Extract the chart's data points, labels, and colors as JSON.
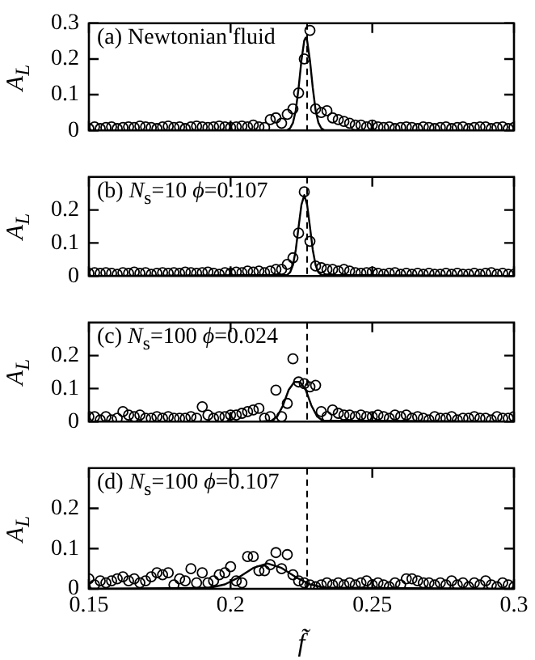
{
  "chart_data": [
    {
      "type": "scatter",
      "annotations": [
        "(a) Newtonian fluid"
      ],
      "ylabel": "A$_{L}$",
      "xlim": [
        0.15,
        0.3
      ],
      "ylim": [
        0,
        0.3
      ],
      "yticks": [
        0,
        0.1,
        0.2,
        0.3
      ],
      "xticks": [
        0.15,
        0.2,
        0.25,
        0.3
      ],
      "tick_labels": "y",
      "grid": false,
      "legend": false,
      "ref_lines": [
        {
          "axis": "x",
          "value": 0.227,
          "line_style": "dashed",
          "color": "#000000"
        }
      ],
      "x": [
        0.15,
        0.152,
        0.154,
        0.156,
        0.158,
        0.16,
        0.162,
        0.164,
        0.166,
        0.168,
        0.17,
        0.172,
        0.174,
        0.176,
        0.178,
        0.18,
        0.182,
        0.184,
        0.186,
        0.188,
        0.19,
        0.192,
        0.194,
        0.196,
        0.198,
        0.2,
        0.202,
        0.204,
        0.206,
        0.208,
        0.21,
        0.212,
        0.214,
        0.216,
        0.218,
        0.22,
        0.222,
        0.224,
        0.226,
        0.228,
        0.23,
        0.232,
        0.234,
        0.236,
        0.238,
        0.24,
        0.242,
        0.244,
        0.246,
        0.248,
        0.25,
        0.252,
        0.254,
        0.256,
        0.258,
        0.26,
        0.262,
        0.264,
        0.266,
        0.268,
        0.27,
        0.272,
        0.274,
        0.276,
        0.278,
        0.28,
        0.282,
        0.284,
        0.286,
        0.288,
        0.29,
        0.292,
        0.294,
        0.296,
        0.298,
        0.3
      ],
      "series": [
        {
          "type": "scatter",
          "marker": "circle",
          "color": "#000000",
          "values": [
            0.005,
            0.01,
            0.005,
            0.008,
            0.01,
            0.005,
            0.008,
            0.01,
            0.008,
            0.012,
            0.01,
            0.008,
            0.005,
            0.01,
            0.012,
            0.008,
            0.01,
            0.005,
            0.01,
            0.012,
            0.01,
            0.008,
            0.01,
            0.012,
            0.01,
            0.008,
            0.01,
            0.012,
            0.01,
            0.015,
            0.01,
            0.008,
            0.03,
            0.035,
            0.02,
            0.045,
            0.06,
            0.105,
            0.2,
            0.28,
            0.06,
            0.05,
            0.055,
            0.035,
            0.03,
            0.025,
            0.02,
            0.015,
            0.015,
            0.01,
            0.015,
            0.01,
            0.008,
            0.01,
            0.005,
            0.008,
            0.01,
            0.008,
            0.005,
            0.01,
            0.008,
            0.005,
            0.008,
            0.01,
            0.005,
            0.008,
            0.01,
            0.005,
            0.008,
            0.01,
            0.01,
            0.005,
            0.008,
            0.01,
            0.005,
            0.008
          ]
        },
        {
          "type": "line",
          "marker": "none",
          "line_style": "solid",
          "color": "#000000",
          "x": [
            0.15,
            0.22,
            0.221,
            0.222,
            0.223,
            0.224,
            0.225,
            0.226,
            0.2265,
            0.227,
            0.228,
            0.229,
            0.23,
            0.231,
            0.232,
            0.233,
            0.3
          ],
          "values": [
            0,
            0.001,
            0.006,
            0.021,
            0.056,
            0.119,
            0.196,
            0.252,
            0.26,
            0.252,
            0.196,
            0.119,
            0.056,
            0.021,
            0.006,
            0.001,
            0
          ]
        }
      ]
    },
    {
      "type": "scatter",
      "annotations": [
        "(b) N$_{s}$=10 ϕ=0.107"
      ],
      "ylabel": "A$_{L}$",
      "xlim": [
        0.15,
        0.3
      ],
      "ylim": [
        0,
        0.3
      ],
      "yticks": [
        0,
        0.1,
        0.2
      ],
      "xticks": [
        0.15,
        0.2,
        0.25,
        0.3
      ],
      "tick_labels": "y",
      "grid": false,
      "legend": false,
      "ref_lines": [
        {
          "axis": "x",
          "value": 0.227,
          "line_style": "dashed",
          "color": "#000000"
        }
      ],
      "x": [
        0.15,
        0.152,
        0.154,
        0.156,
        0.158,
        0.16,
        0.162,
        0.164,
        0.166,
        0.168,
        0.17,
        0.172,
        0.174,
        0.176,
        0.178,
        0.18,
        0.182,
        0.184,
        0.186,
        0.188,
        0.19,
        0.192,
        0.194,
        0.196,
        0.198,
        0.2,
        0.202,
        0.204,
        0.206,
        0.208,
        0.21,
        0.212,
        0.214,
        0.216,
        0.218,
        0.22,
        0.222,
        0.224,
        0.226,
        0.228,
        0.23,
        0.232,
        0.234,
        0.236,
        0.238,
        0.24,
        0.242,
        0.244,
        0.246,
        0.248,
        0.25,
        0.252,
        0.254,
        0.256,
        0.258,
        0.26,
        0.262,
        0.264,
        0.266,
        0.268,
        0.27,
        0.272,
        0.274,
        0.276,
        0.278,
        0.28,
        0.282,
        0.284,
        0.286,
        0.288,
        0.29,
        0.292,
        0.294,
        0.296,
        0.298,
        0.3
      ],
      "series": [
        {
          "type": "scatter",
          "marker": "circle",
          "color": "#000000",
          "values": [
            0.008,
            0.01,
            0.008,
            0.01,
            0.008,
            0.005,
            0.01,
            0.008,
            0.012,
            0.008,
            0.01,
            0.005,
            0.008,
            0.01,
            0.008,
            0.01,
            0.008,
            0.012,
            0.01,
            0.008,
            0.01,
            0.012,
            0.008,
            0.005,
            0.01,
            0.008,
            0.012,
            0.01,
            0.015,
            0.012,
            0.015,
            0.01,
            0.015,
            0.02,
            0.02,
            0.035,
            0.055,
            0.13,
            0.255,
            0.105,
            0.03,
            0.025,
            0.02,
            0.02,
            0.015,
            0.02,
            0.015,
            0.01,
            0.008,
            0.01,
            0.012,
            0.008,
            0.005,
            0.008,
            0.01,
            0.005,
            0.008,
            0.005,
            0.008,
            0.005,
            0.008,
            0.005,
            0.005,
            0.008,
            0.005,
            0.008,
            0.005,
            0.005,
            0.008,
            0.005,
            0.008,
            0.01,
            0.005,
            0.008,
            0.005,
            0.005
          ]
        },
        {
          "type": "line",
          "marker": "none",
          "line_style": "solid",
          "color": "#000000",
          "x": [
            0.15,
            0.22,
            0.221,
            0.222,
            0.223,
            0.224,
            0.225,
            0.226,
            0.227,
            0.228,
            0.229,
            0.23,
            0.231,
            0.232,
            0.3
          ],
          "values": [
            0,
            0.003,
            0.011,
            0.033,
            0.079,
            0.149,
            0.216,
            0.245,
            0.216,
            0.149,
            0.079,
            0.033,
            0.011,
            0.003,
            0
          ]
        }
      ]
    },
    {
      "type": "scatter",
      "annotations": [
        "(c) N$_{s}$=100 ϕ=0.024"
      ],
      "ylabel": "A$_{L}$",
      "xlim": [
        0.15,
        0.3
      ],
      "ylim": [
        0,
        0.3
      ],
      "yticks": [
        0,
        0.1,
        0.2
      ],
      "xticks": [
        0.15,
        0.2,
        0.25,
        0.3
      ],
      "tick_labels": "y",
      "grid": false,
      "legend": false,
      "ref_lines": [
        {
          "axis": "x",
          "value": 0.227,
          "line_style": "dashed",
          "color": "#000000"
        }
      ],
      "x": [
        0.15,
        0.152,
        0.154,
        0.156,
        0.158,
        0.16,
        0.162,
        0.164,
        0.166,
        0.168,
        0.17,
        0.172,
        0.174,
        0.176,
        0.178,
        0.18,
        0.182,
        0.184,
        0.186,
        0.188,
        0.19,
        0.192,
        0.194,
        0.196,
        0.198,
        0.2,
        0.202,
        0.204,
        0.206,
        0.208,
        0.21,
        0.212,
        0.214,
        0.216,
        0.218,
        0.22,
        0.222,
        0.224,
        0.226,
        0.228,
        0.23,
        0.232,
        0.234,
        0.236,
        0.238,
        0.24,
        0.242,
        0.244,
        0.246,
        0.248,
        0.25,
        0.252,
        0.254,
        0.256,
        0.258,
        0.26,
        0.262,
        0.264,
        0.266,
        0.268,
        0.27,
        0.272,
        0.274,
        0.276,
        0.278,
        0.28,
        0.282,
        0.284,
        0.286,
        0.288,
        0.29,
        0.292,
        0.294,
        0.296,
        0.298,
        0.3
      ],
      "series": [
        {
          "type": "scatter",
          "marker": "circle",
          "color": "#000000",
          "values": [
            0.015,
            0.015,
            0.005,
            0.015,
            0.005,
            0.01,
            0.03,
            0.02,
            0.015,
            0.02,
            0.01,
            0.01,
            0.015,
            0.01,
            0.015,
            0.01,
            0.01,
            0.01,
            0.015,
            0.01,
            0.045,
            0.02,
            0.01,
            0.015,
            0.015,
            0.02,
            0.02,
            0.025,
            0.03,
            0.035,
            0.04,
            0.01,
            0.015,
            0.095,
            0.015,
            0.055,
            0.19,
            0.12,
            0.115,
            0.105,
            0.11,
            0.03,
            0.015,
            0.035,
            0.025,
            0.02,
            0.02,
            0.015,
            0.02,
            0.015,
            0.015,
            0.02,
            0.015,
            0.01,
            0.02,
            0.015,
            0.02,
            0.01,
            0.015,
            0.01,
            0.005,
            0.015,
            0.01,
            0.01,
            0.015,
            0.005,
            0.01,
            0.01,
            0.015,
            0.01,
            0.01,
            0.005,
            0.015,
            0.01,
            0.01,
            0.015
          ]
        },
        {
          "type": "line",
          "marker": "none",
          "line_style": "solid",
          "color": "#000000",
          "x": [
            0.15,
            0.2105,
            0.2145,
            0.2165,
            0.2185,
            0.2205,
            0.2225,
            0.2245,
            0.2265,
            0.2285,
            0.2305,
            0.2325,
            0.3
          ],
          "values": [
            0,
            0,
            0.003,
            0.016,
            0.049,
            0.096,
            0.12,
            0.12,
            0.096,
            0.049,
            0.016,
            0.003,
            0
          ]
        }
      ]
    },
    {
      "type": "scatter",
      "annotations": [
        "(d) N$_{s}$=100 ϕ=0.107"
      ],
      "ylabel": "A$_{L}$",
      "xlabel": "f̃",
      "xlim": [
        0.15,
        0.3
      ],
      "ylim": [
        0,
        0.3
      ],
      "yticks": [
        0,
        0.1,
        0.2
      ],
      "xticks": [
        0.15,
        0.2,
        0.25,
        0.3
      ],
      "grid": false,
      "legend": false,
      "ref_lines": [
        {
          "axis": "x",
          "value": 0.227,
          "line_style": "dashed",
          "color": "#000000"
        }
      ],
      "x": [
        0.15,
        0.152,
        0.154,
        0.156,
        0.158,
        0.16,
        0.162,
        0.164,
        0.166,
        0.168,
        0.17,
        0.172,
        0.174,
        0.176,
        0.178,
        0.18,
        0.182,
        0.184,
        0.186,
        0.188,
        0.19,
        0.192,
        0.194,
        0.196,
        0.198,
        0.2,
        0.202,
        0.204,
        0.206,
        0.208,
        0.21,
        0.212,
        0.214,
        0.216,
        0.218,
        0.22,
        0.222,
        0.224,
        0.226,
        0.228,
        0.23,
        0.232,
        0.234,
        0.236,
        0.238,
        0.24,
        0.242,
        0.244,
        0.246,
        0.248,
        0.25,
        0.252,
        0.254,
        0.256,
        0.258,
        0.26,
        0.262,
        0.264,
        0.266,
        0.268,
        0.27,
        0.272,
        0.274,
        0.276,
        0.278,
        0.28,
        0.282,
        0.284,
        0.286,
        0.288,
        0.29,
        0.292,
        0.294,
        0.296,
        0.298,
        0.3
      ],
      "series": [
        {
          "type": "scatter",
          "marker": "circle",
          "color": "#000000",
          "values": [
            0.025,
            0.01,
            0.02,
            0.015,
            0.02,
            0.025,
            0.03,
            0.02,
            0.025,
            0.015,
            0.02,
            0.03,
            0.04,
            0.035,
            0.04,
            0.01,
            0.025,
            0.02,
            0.05,
            0.015,
            0.04,
            0.015,
            0.02,
            0.035,
            0.04,
            0.055,
            0.02,
            0.015,
            0.08,
            0.08,
            0.045,
            0.045,
            0.06,
            0.09,
            0.05,
            0.085,
            0.035,
            0.02,
            0.015,
            0.01,
            0.005,
            0.01,
            0.015,
            0.01,
            0.015,
            0.01,
            0.015,
            0.01,
            0.015,
            0.02,
            0.01,
            0.015,
            0.01,
            0.005,
            0.015,
            0.01,
            0.025,
            0.025,
            0.02,
            0.015,
            0.015,
            0.01,
            0.015,
            0.01,
            0.02,
            0.01,
            0.015,
            0.005,
            0.015,
            0.01,
            0.02,
            0.01,
            0.005,
            0.015,
            0.01,
            0.005
          ]
        },
        {
          "type": "line",
          "marker": "none",
          "line_style": "solid",
          "color": "#000000",
          "x": [
            0.15,
            0.188,
            0.193,
            0.198,
            0.203,
            0.208,
            0.213,
            0.218,
            0.223,
            0.228,
            0.233,
            0.3
          ],
          "values": [
            0,
            0.002,
            0.003,
            0.011,
            0.029,
            0.052,
            0.063,
            0.052,
            0.029,
            0.011,
            0.003,
            0
          ]
        }
      ]
    }
  ]
}
